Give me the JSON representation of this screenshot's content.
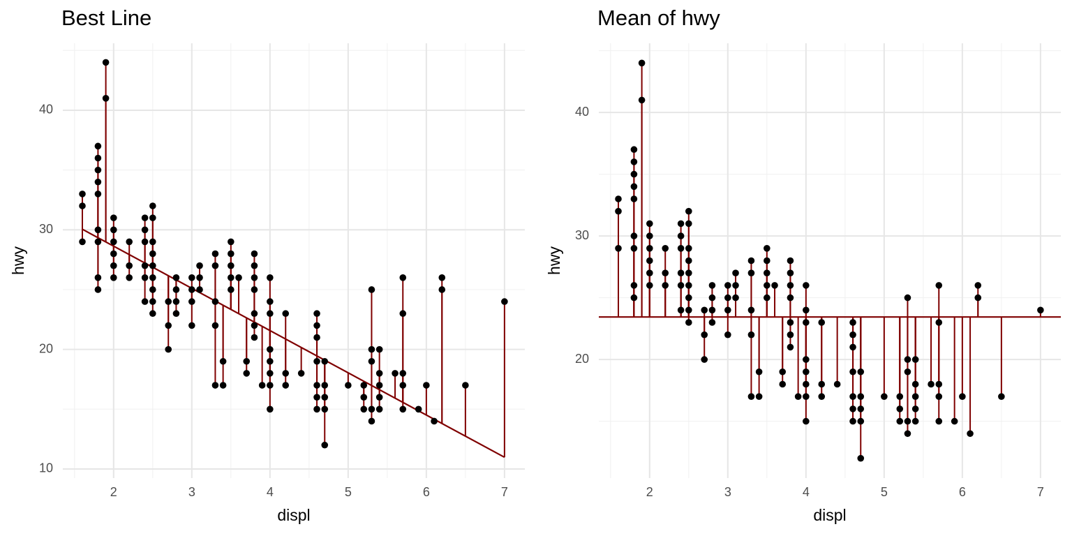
{
  "chart_data": [
    {
      "type": "scatter",
      "title": "Best Line",
      "x_label": "displ",
      "y_label": "hwy",
      "x": [
        1.6,
        1.6,
        1.6,
        1.8,
        1.8,
        1.8,
        1.8,
        1.8,
        1.8,
        1.8,
        1.8,
        1.8,
        1.9,
        1.9,
        2,
        2,
        2,
        2,
        2,
        2,
        2.2,
        2.2,
        2.2,
        2.4,
        2.4,
        2.4,
        2.4,
        2.4,
        2.4,
        2.5,
        2.5,
        2.5,
        2.5,
        2.5,
        2.5,
        2.5,
        2.5,
        2.5,
        2.7,
        2.7,
        2.7,
        2.8,
        2.8,
        2.8,
        2.8,
        3,
        3,
        3,
        3,
        3.1,
        3.1,
        3.1,
        3.3,
        3.3,
        3.3,
        3.3,
        3.3,
        3.4,
        3.4,
        3.5,
        3.5,
        3.5,
        3.5,
        3.5,
        3.6,
        3.7,
        3.7,
        3.8,
        3.8,
        3.8,
        3.8,
        3.8,
        3.8,
        3.8,
        3.9,
        4,
        4,
        4,
        4,
        4,
        4,
        4,
        4,
        4.2,
        4.2,
        4.2,
        4.4,
        4.6,
        4.6,
        4.6,
        4.6,
        4.6,
        4.6,
        4.6,
        4.7,
        4.7,
        4.7,
        4.7,
        4.7,
        5,
        5.2,
        5.2,
        5.2,
        5.3,
        5.3,
        5.3,
        5.3,
        5.3,
        5.4,
        5.4,
        5.4,
        5.4,
        5.4,
        5.6,
        5.7,
        5.7,
        5.7,
        5.7,
        5.7,
        5.9,
        6,
        6.1,
        6.2,
        6.2,
        6.5,
        7
      ],
      "values": [
        33,
        32,
        29,
        37,
        36,
        35,
        34,
        33,
        30,
        29,
        26,
        25,
        44,
        41,
        31,
        30,
        29,
        28,
        27,
        26,
        29,
        27,
        26,
        31,
        30,
        29,
        27,
        26,
        24,
        32,
        31,
        29,
        28,
        27,
        26,
        25,
        24,
        23,
        24,
        22,
        20,
        26,
        25,
        24,
        23,
        26,
        25,
        24,
        22,
        27,
        26,
        25,
        28,
        27,
        24,
        22,
        17,
        19,
        17,
        29,
        28,
        27,
        26,
        25,
        26,
        19,
        18,
        28,
        27,
        26,
        25,
        23,
        22,
        21,
        17,
        26,
        24,
        23,
        20,
        19,
        18,
        17,
        15,
        23,
        18,
        17,
        18,
        23,
        22,
        21,
        19,
        17,
        16,
        15,
        19,
        17,
        16,
        15,
        12,
        17,
        17,
        16,
        15,
        25,
        20,
        19,
        15,
        14,
        20,
        18,
        17,
        16,
        15,
        18,
        26,
        23,
        18,
        17,
        15,
        15,
        17,
        14,
        26,
        25,
        17,
        24
      ],
      "fit": {
        "intercept": 35.698,
        "slope": -3.531
      },
      "line_span": "data",
      "point_color": "#000000",
      "line_color": "#7f0000",
      "xlim": [
        1.35,
        7.26
      ],
      "ylim": [
        9.24,
        45.6
      ],
      "xticks": [
        2,
        3,
        4,
        5,
        6,
        7
      ],
      "yticks": [
        10,
        20,
        30,
        40
      ],
      "grid": true
    },
    {
      "type": "scatter",
      "title": "Mean of hwy",
      "x_label": "displ",
      "y_label": "hwy",
      "x": [
        1.6,
        1.6,
        1.6,
        1.8,
        1.8,
        1.8,
        1.8,
        1.8,
        1.8,
        1.8,
        1.8,
        1.8,
        1.9,
        1.9,
        2,
        2,
        2,
        2,
        2,
        2,
        2.2,
        2.2,
        2.2,
        2.4,
        2.4,
        2.4,
        2.4,
        2.4,
        2.4,
        2.5,
        2.5,
        2.5,
        2.5,
        2.5,
        2.5,
        2.5,
        2.5,
        2.5,
        2.7,
        2.7,
        2.7,
        2.8,
        2.8,
        2.8,
        2.8,
        3,
        3,
        3,
        3,
        3.1,
        3.1,
        3.1,
        3.3,
        3.3,
        3.3,
        3.3,
        3.3,
        3.4,
        3.4,
        3.5,
        3.5,
        3.5,
        3.5,
        3.5,
        3.6,
        3.7,
        3.7,
        3.8,
        3.8,
        3.8,
        3.8,
        3.8,
        3.8,
        3.8,
        3.9,
        4,
        4,
        4,
        4,
        4,
        4,
        4,
        4,
        4.2,
        4.2,
        4.2,
        4.4,
        4.6,
        4.6,
        4.6,
        4.6,
        4.6,
        4.6,
        4.6,
        4.7,
        4.7,
        4.7,
        4.7,
        4.7,
        5,
        5.2,
        5.2,
        5.2,
        5.3,
        5.3,
        5.3,
        5.3,
        5.3,
        5.4,
        5.4,
        5.4,
        5.4,
        5.4,
        5.6,
        5.7,
        5.7,
        5.7,
        5.7,
        5.7,
        5.9,
        6,
        6.1,
        6.2,
        6.2,
        6.5,
        7
      ],
      "values": [
        33,
        32,
        29,
        37,
        36,
        35,
        34,
        33,
        30,
        29,
        26,
        25,
        44,
        41,
        31,
        30,
        29,
        28,
        27,
        26,
        29,
        27,
        26,
        31,
        30,
        29,
        27,
        26,
        24,
        32,
        31,
        29,
        28,
        27,
        26,
        25,
        24,
        23,
        24,
        22,
        20,
        26,
        25,
        24,
        23,
        26,
        25,
        24,
        22,
        27,
        26,
        25,
        28,
        27,
        24,
        22,
        17,
        19,
        17,
        29,
        28,
        27,
        26,
        25,
        26,
        19,
        18,
        28,
        27,
        26,
        25,
        23,
        22,
        21,
        17,
        26,
        24,
        23,
        20,
        19,
        18,
        17,
        15,
        23,
        18,
        17,
        18,
        23,
        22,
        21,
        19,
        17,
        16,
        15,
        19,
        17,
        16,
        15,
        12,
        17,
        17,
        16,
        15,
        25,
        20,
        19,
        15,
        14,
        20,
        18,
        17,
        16,
        15,
        18,
        26,
        23,
        18,
        17,
        15,
        15,
        17,
        14,
        26,
        25,
        17,
        24
      ],
      "fit": {
        "intercept": 23.44,
        "slope": 0
      },
      "line_span": "panel",
      "point_color": "#000000",
      "line_color": "#7f0000",
      "xlim": [
        1.35,
        7.26
      ],
      "ylim": [
        10.4,
        45.6
      ],
      "xticks": [
        2,
        3,
        4,
        5,
        6,
        7
      ],
      "yticks": [
        20,
        30,
        40
      ],
      "grid": true
    }
  ]
}
